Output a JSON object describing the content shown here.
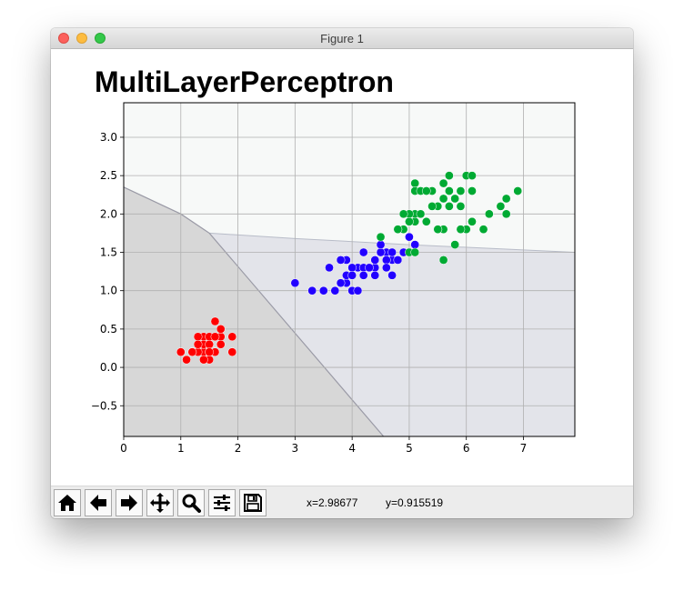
{
  "window": {
    "title": "Figure 1"
  },
  "figure": {
    "title": "MultiLayerPerceptron"
  },
  "toolbar": {
    "buttons": [
      {
        "name": "home-icon"
      },
      {
        "name": "back-icon"
      },
      {
        "name": "forward-icon"
      },
      {
        "name": "pan-icon"
      },
      {
        "name": "zoom-icon"
      },
      {
        "name": "configure-subplots-icon"
      },
      {
        "name": "save-icon"
      }
    ],
    "x_readout": "x=2.98677",
    "y_readout": "y=0.915519"
  },
  "colors": {
    "setosa": "#ff0000",
    "versicolor": "#2200ff",
    "virginica": "#00aa33",
    "region_setosa": "#d7d7d7",
    "region_versicolor": "#e3e4ea",
    "region_virginica": "#f7f9f8"
  },
  "chart_data": {
    "type": "scatter",
    "title": "MultiLayerPerceptron",
    "xlabel": "",
    "ylabel": "",
    "xlim": [
      0,
      7.9
    ],
    "ylim": [
      -0.9,
      3.45
    ],
    "xticks": [
      "0",
      "1",
      "2",
      "3",
      "4",
      "5",
      "6",
      "7"
    ],
    "yticks": [
      "−0.5",
      "0.0",
      "0.5",
      "1.0",
      "1.5",
      "2.0",
      "2.5",
      "3.0"
    ],
    "ytick_values": [
      -0.5,
      0,
      0.5,
      1.0,
      1.5,
      2.0,
      2.5,
      3.0
    ],
    "grid": true,
    "decision_regions": {
      "setosa_boundary": [
        [
          0,
          2.35
        ],
        [
          1.0,
          2.0
        ],
        [
          1.5,
          1.75
        ],
        [
          4.55,
          -0.9
        ]
      ],
      "versicolor_virginica_boundary": [
        [
          1.5,
          1.75
        ],
        [
          3.0,
          1.68
        ],
        [
          5.0,
          1.6
        ],
        [
          7.9,
          1.5
        ]
      ]
    },
    "series": [
      {
        "color": "#ff0000",
        "points": [
          [
            1.4,
            0.2
          ],
          [
            1.3,
            0.2
          ],
          [
            1.5,
            0.2
          ],
          [
            1.4,
            0.4
          ],
          [
            1.7,
            0.4
          ],
          [
            1.4,
            0.3
          ],
          [
            1.5,
            0.1
          ],
          [
            1.6,
            0.2
          ],
          [
            1.1,
            0.1
          ],
          [
            1.2,
            0.2
          ],
          [
            1.3,
            0.4
          ],
          [
            1.7,
            0.3
          ],
          [
            1.5,
            0.4
          ],
          [
            1.0,
            0.2
          ],
          [
            1.9,
            0.2
          ],
          [
            1.6,
            0.4
          ],
          [
            1.5,
            0.3
          ],
          [
            1.3,
            0.3
          ],
          [
            1.4,
            0.1
          ],
          [
            1.9,
            0.4
          ],
          [
            1.6,
            0.6
          ],
          [
            1.7,
            0.5
          ],
          [
            1.2,
            0.2
          ],
          [
            1.5,
            0.2
          ]
        ]
      },
      {
        "color": "#2200ff",
        "points": [
          [
            4.7,
            1.4
          ],
          [
            4.5,
            1.5
          ],
          [
            4.9,
            1.5
          ],
          [
            4.0,
            1.3
          ],
          [
            4.6,
            1.5
          ],
          [
            3.3,
            1.0
          ],
          [
            3.9,
            1.4
          ],
          [
            3.5,
            1.0
          ],
          [
            4.2,
            1.5
          ],
          [
            4.0,
            1.0
          ],
          [
            4.7,
            1.4
          ],
          [
            3.6,
            1.3
          ],
          [
            4.4,
            1.4
          ],
          [
            4.1,
            1.0
          ],
          [
            4.5,
            1.5
          ],
          [
            3.9,
            1.1
          ],
          [
            4.8,
            1.8
          ],
          [
            4.0,
            1.3
          ],
          [
            4.9,
            1.5
          ],
          [
            4.7,
            1.2
          ],
          [
            4.3,
            1.3
          ],
          [
            4.4,
            1.4
          ],
          [
            4.8,
            1.4
          ],
          [
            5.0,
            1.7
          ],
          [
            4.5,
            1.5
          ],
          [
            3.8,
            1.1
          ],
          [
            3.7,
            1.0
          ],
          [
            3.9,
            1.2
          ],
          [
            5.1,
            1.6
          ],
          [
            4.5,
            1.6
          ],
          [
            4.7,
            1.5
          ],
          [
            4.4,
            1.3
          ],
          [
            4.1,
            1.3
          ],
          [
            4.0,
            1.3
          ],
          [
            4.4,
            1.2
          ],
          [
            4.6,
            1.4
          ],
          [
            4.0,
            1.2
          ],
          [
            3.0,
            1.1
          ],
          [
            4.2,
            1.3
          ],
          [
            4.2,
            1.2
          ],
          [
            4.3,
            1.3
          ],
          [
            3.8,
            1.4
          ],
          [
            4.6,
            1.3
          ],
          [
            4.4,
            1.4
          ]
        ]
      },
      {
        "color": "#00aa33",
        "points": [
          [
            6.0,
            2.5
          ],
          [
            5.1,
            1.9
          ],
          [
            5.9,
            2.1
          ],
          [
            5.6,
            1.8
          ],
          [
            5.8,
            2.2
          ],
          [
            6.6,
            2.1
          ],
          [
            4.5,
            1.7
          ],
          [
            6.3,
            1.8
          ],
          [
            6.1,
            2.5
          ],
          [
            5.1,
            2.0
          ],
          [
            5.3,
            1.9
          ],
          [
            5.5,
            2.1
          ],
          [
            5.0,
            2.0
          ],
          [
            5.1,
            2.4
          ],
          [
            5.5,
            1.8
          ],
          [
            6.7,
            2.2
          ],
          [
            6.9,
            2.3
          ],
          [
            5.0,
            1.5
          ],
          [
            5.7,
            2.3
          ],
          [
            4.9,
            2.0
          ],
          [
            6.7,
            2.0
          ],
          [
            4.9,
            1.8
          ],
          [
            5.7,
            2.1
          ],
          [
            6.0,
            1.8
          ],
          [
            4.8,
            1.8
          ],
          [
            5.8,
            1.6
          ],
          [
            6.1,
            1.9
          ],
          [
            6.4,
            2.0
          ],
          [
            5.6,
            2.2
          ],
          [
            5.1,
            1.5
          ],
          [
            5.6,
            1.4
          ],
          [
            6.1,
            2.3
          ],
          [
            5.6,
            2.4
          ],
          [
            5.5,
            1.8
          ],
          [
            4.8,
            1.8
          ],
          [
            5.4,
            2.1
          ],
          [
            5.6,
            2.4
          ],
          [
            5.1,
            2.3
          ],
          [
            5.9,
            2.3
          ],
          [
            5.7,
            2.5
          ],
          [
            5.2,
            2.3
          ],
          [
            5.0,
            1.9
          ],
          [
            5.2,
            2.0
          ],
          [
            5.4,
            2.3
          ],
          [
            5.3,
            2.3
          ],
          [
            5.9,
            1.8
          ],
          [
            6.7,
            2.0
          ]
        ]
      }
    ]
  }
}
